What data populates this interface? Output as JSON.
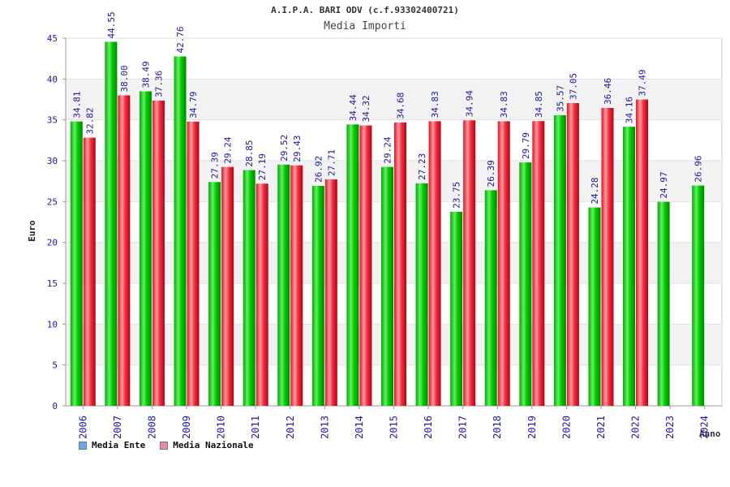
{
  "chart_data": {
    "type": "bar",
    "title": "A.I.P.A. BARI ODV (c.f.93302400721)",
    "subtitle": "Media Importi",
    "xlabel": "Anno",
    "ylabel": "Euro",
    "ylim": [
      0,
      45
    ],
    "yticks": [
      0,
      5,
      10,
      15,
      20,
      25,
      30,
      35,
      40,
      45
    ],
    "grid": true,
    "legend_position": "bottom-left",
    "categories": [
      "2006",
      "2007",
      "2008",
      "2009",
      "2010",
      "2011",
      "2012",
      "2013",
      "2014",
      "2015",
      "2016",
      "2017",
      "2018",
      "2019",
      "2020",
      "2021",
      "2022",
      "2023",
      "2024"
    ],
    "series": [
      {
        "name": "Media Ente",
        "color": "#00bb00",
        "legend_color": "#66aaee",
        "values": [
          34.81,
          44.55,
          38.49,
          42.76,
          27.39,
          28.85,
          29.52,
          26.92,
          34.44,
          29.24,
          27.23,
          23.75,
          26.39,
          29.79,
          35.57,
          24.28,
          34.16,
          24.97,
          26.96
        ],
        "labels": [
          "34.81",
          "44.55",
          "38.49",
          "42.76",
          "27.39",
          "28.85",
          "29.52",
          "26.92",
          "34.44",
          "29.24",
          "27.23",
          "23.75",
          "26.39",
          "29.79",
          "35.57",
          "24.28",
          "34.16",
          "24.97",
          "26.96"
        ]
      },
      {
        "name": "Media Nazionale",
        "color": "#ee2233",
        "legend_color": "#ee88aa",
        "values": [
          32.82,
          38.0,
          37.36,
          34.79,
          29.24,
          27.19,
          29.43,
          27.71,
          34.32,
          34.68,
          34.83,
          34.94,
          34.83,
          34.85,
          37.05,
          36.46,
          37.49,
          null,
          null
        ],
        "labels": [
          "32.82",
          "38.00",
          "37.36",
          "34.79",
          "29.24",
          "27.19",
          "29.43",
          "27.71",
          "34.32",
          "34.68",
          "34.83",
          "34.94",
          "34.83",
          "34.85",
          "37.05",
          "36.46",
          "37.49",
          null,
          null
        ]
      }
    ]
  }
}
